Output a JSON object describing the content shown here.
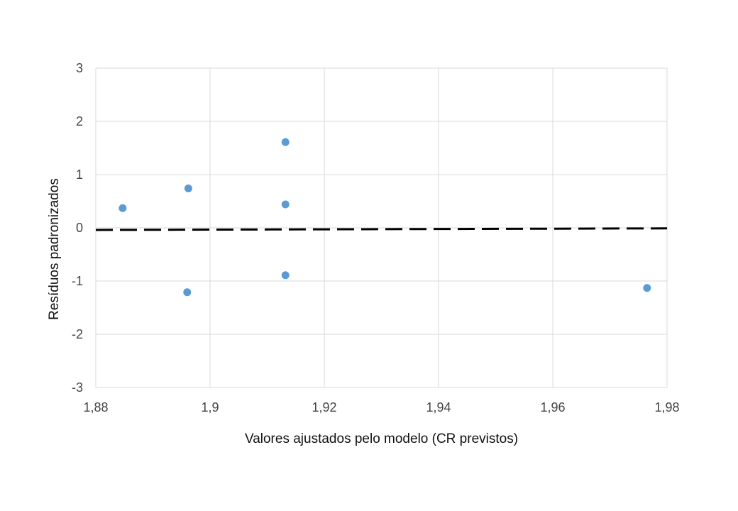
{
  "chart_data": {
    "type": "scatter",
    "title": "",
    "xlabel": "Valores ajustados pelo modelo (CR previstos)",
    "ylabel": "Resíduos padronizados",
    "xlim": [
      1.88,
      1.98
    ],
    "ylim": [
      -3,
      3
    ],
    "xticks": [
      1.88,
      1.9,
      1.92,
      1.94,
      1.96,
      1.98
    ],
    "xtick_labels": [
      "1,88",
      "1,9",
      "1,92",
      "1,94",
      "1,96",
      "1,98"
    ],
    "yticks": [
      3,
      2,
      1,
      0,
      -1,
      -2,
      -3
    ],
    "ytick_labels": [
      "3",
      "2",
      "1",
      "0",
      "-1",
      "-2",
      "-3"
    ],
    "grid": true,
    "series": [
      {
        "type": "scatter",
        "color": "#5b9bd5",
        "points": [
          {
            "x": 1.8847,
            "y": 0.37
          },
          {
            "x": 1.8962,
            "y": 0.74
          },
          {
            "x": 1.896,
            "y": -1.21
          },
          {
            "x": 1.9132,
            "y": 1.61
          },
          {
            "x": 1.9132,
            "y": 0.44
          },
          {
            "x": 1.9132,
            "y": -0.89
          },
          {
            "x": 1.9765,
            "y": -1.13
          }
        ]
      },
      {
        "type": "line",
        "style": "dashed",
        "color": "#000000",
        "points": [
          {
            "x": 1.88,
            "y": -0.04
          },
          {
            "x": 1.98,
            "y": -0.01
          }
        ]
      }
    ]
  }
}
